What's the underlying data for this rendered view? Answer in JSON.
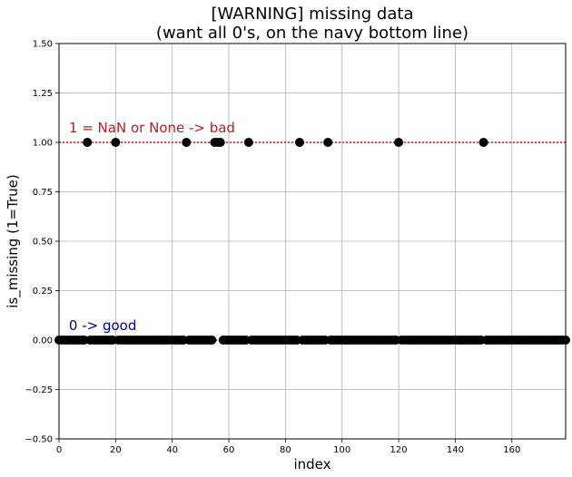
{
  "chart_data": {
    "type": "scatter",
    "title_line1": "[WARNING] missing data",
    "title_line2": "(want all 0's, on the navy bottom line)",
    "xlabel": "index",
    "ylabel": "is_missing (1=True)",
    "xlim": [
      0,
      179
    ],
    "ylim": [
      -0.5,
      1.5
    ],
    "xticks": [
      0,
      20,
      40,
      60,
      80,
      100,
      120,
      140,
      160
    ],
    "yticks": [
      -0.5,
      -0.25,
      0.0,
      0.25,
      0.5,
      0.75,
      1.0,
      1.25,
      1.5
    ],
    "ytick_labels": [
      "−0.50",
      "−0.25",
      "0.00",
      "0.25",
      "0.50",
      "0.75",
      "1.00",
      "1.25",
      "1.50"
    ],
    "grid": true,
    "annotations": [
      {
        "text": "1 = NaN or None -> bad",
        "x": 3.5,
        "y": 1.05,
        "color": "#b22222"
      },
      {
        "text": "0 -> good",
        "x": 3.5,
        "y": 0.05,
        "color": "#000080"
      }
    ],
    "reference_lines": [
      {
        "y": 1.0,
        "color": "#b22222",
        "style": "dotted"
      },
      {
        "y": 0.0,
        "color": "#000080",
        "style": "dotted"
      }
    ],
    "missing_indices": [
      10,
      20,
      45,
      55,
      56,
      57,
      67,
      85,
      95,
      120,
      150
    ],
    "n_points": 180,
    "marker_color": "#000000"
  }
}
